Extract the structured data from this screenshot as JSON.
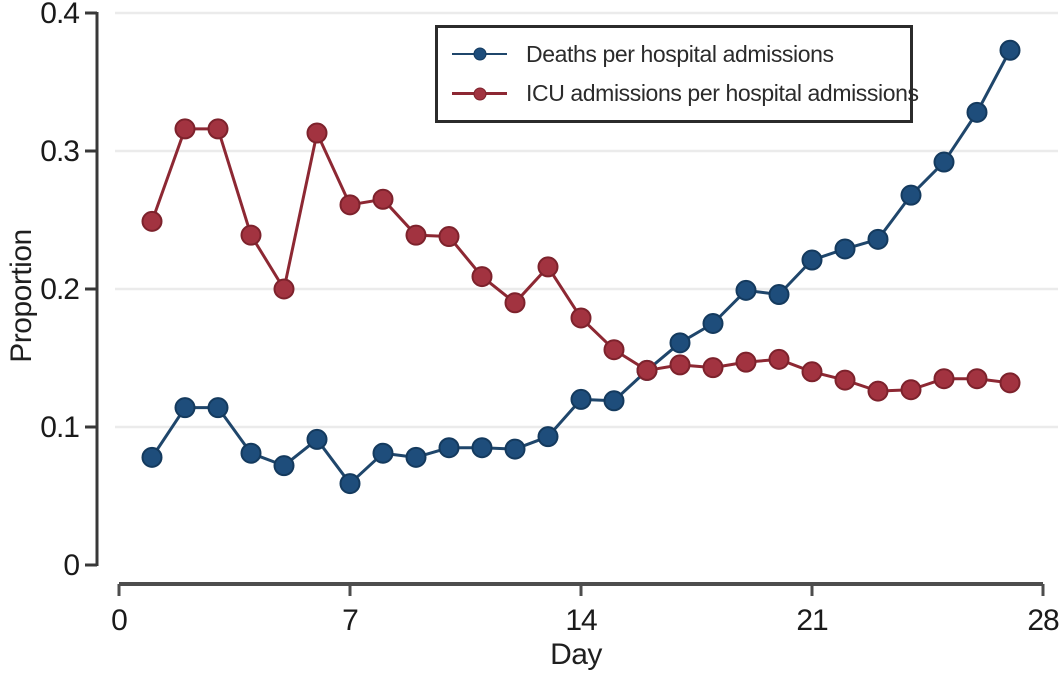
{
  "chart_data": {
    "type": "line",
    "title": "",
    "xlabel": "Day",
    "ylabel": "Proportion",
    "xlim": [
      0,
      28
    ],
    "ylim": [
      0,
      0.4
    ],
    "x_ticks": [
      0,
      7,
      14,
      21,
      28
    ],
    "x_tick_labels": [
      "0",
      "7",
      "14",
      "21",
      "28"
    ],
    "y_ticks": [
      0,
      0.1,
      0.2,
      0.3,
      0.4
    ],
    "y_tick_labels": [
      "0",
      "0.1",
      "0.2",
      "0.3",
      "0.4"
    ],
    "grid": "horizontal-light",
    "legend_position": "top-center-inside-box",
    "x": [
      1,
      2,
      3,
      4,
      5,
      6,
      7,
      8,
      9,
      10,
      11,
      12,
      13,
      14,
      15,
      16,
      17,
      18,
      19,
      20,
      21,
      22,
      23,
      24,
      25,
      26,
      27
    ],
    "series": [
      {
        "id": "deaths",
        "name": "Deaths per hospital admissions",
        "color": "#1e4d7b",
        "edge_color": "#143a5e",
        "line_color": "#1f466b",
        "values": [
          0.078,
          0.114,
          0.114,
          0.081,
          0.072,
          0.091,
          0.059,
          0.081,
          0.078,
          0.085,
          0.085,
          0.084,
          0.093,
          0.12,
          0.119,
          0.141,
          0.161,
          0.175,
          0.199,
          0.196,
          0.221,
          0.229,
          0.236,
          0.268,
          0.292,
          0.328,
          0.373
        ]
      },
      {
        "id": "icu",
        "name": "ICU admissions per hospital admissions",
        "color": "#a23340",
        "edge_color": "#7d222c",
        "line_color": "#8d2833",
        "values": [
          0.249,
          0.316,
          0.316,
          0.239,
          0.2,
          0.313,
          0.261,
          0.265,
          0.239,
          0.238,
          0.209,
          0.19,
          0.216,
          0.179,
          0.156,
          0.141,
          0.145,
          0.143,
          0.147,
          0.149,
          0.14,
          0.134,
          0.126,
          0.127,
          0.135,
          0.135,
          0.132
        ]
      }
    ],
    "colors": {
      "grid": "#ebebeb",
      "y_axis": "#383838",
      "x_axis": "#4d4d4d",
      "tick_text": "#1a1a1a"
    }
  }
}
